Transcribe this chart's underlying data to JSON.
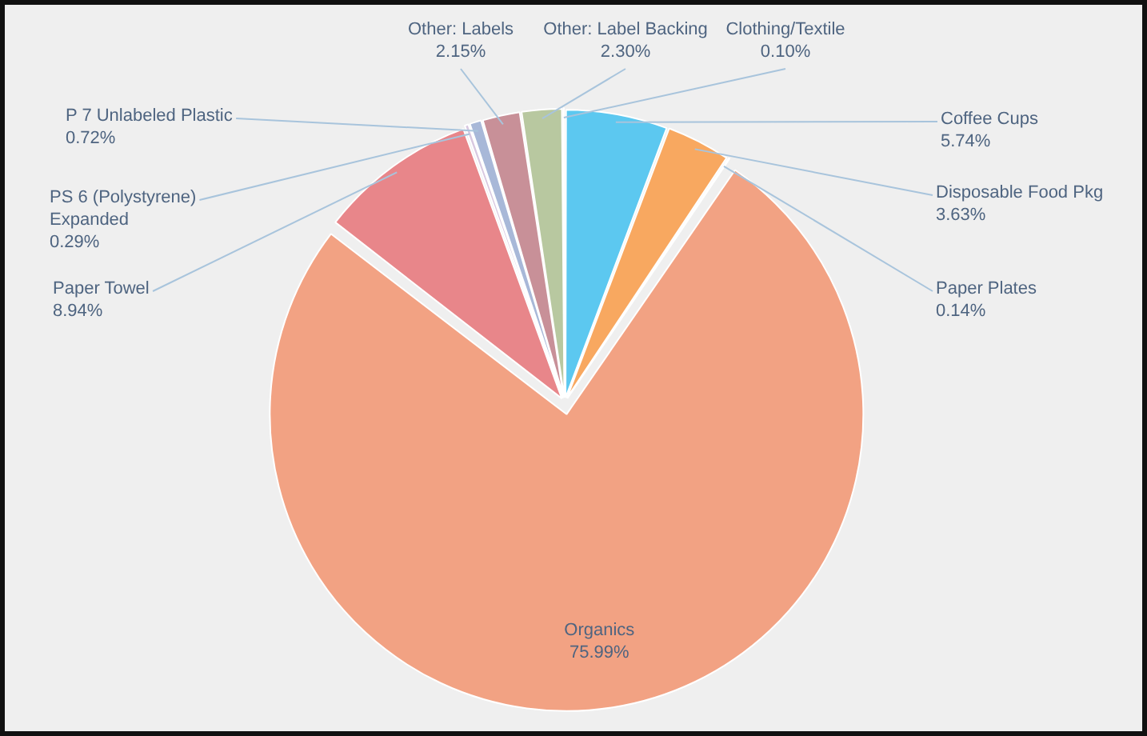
{
  "chart_data": {
    "type": "pie",
    "categories": [
      "Coffee Cups",
      "Disposable Food Pkg",
      "Paper Plates",
      "Organics",
      "Paper Towel",
      "PS 6 (Polystyrene) Expanded",
      "P 7 Unlabeled Plastic",
      "Other: Labels",
      "Other: Label Backing",
      "Clothing/Textile"
    ],
    "values": [
      5.74,
      3.63,
      0.14,
      75.99,
      8.94,
      0.29,
      0.72,
      2.15,
      2.3,
      0.1
    ],
    "value_labels": [
      "5.74%",
      "3.63%",
      "0.14%",
      "75.99%",
      "8.94%",
      "0.29%",
      "0.72%",
      "2.15%",
      "2.30%",
      "0.10%"
    ],
    "colors": [
      "#5cc8f0",
      "#f8a860",
      "#e0d8a0",
      "#f2a283",
      "#e8868a",
      "#d8c8e0",
      "#a8b8d8",
      "#c89098",
      "#b8c8a0",
      "#c8d8b0"
    ],
    "legend": false
  }
}
